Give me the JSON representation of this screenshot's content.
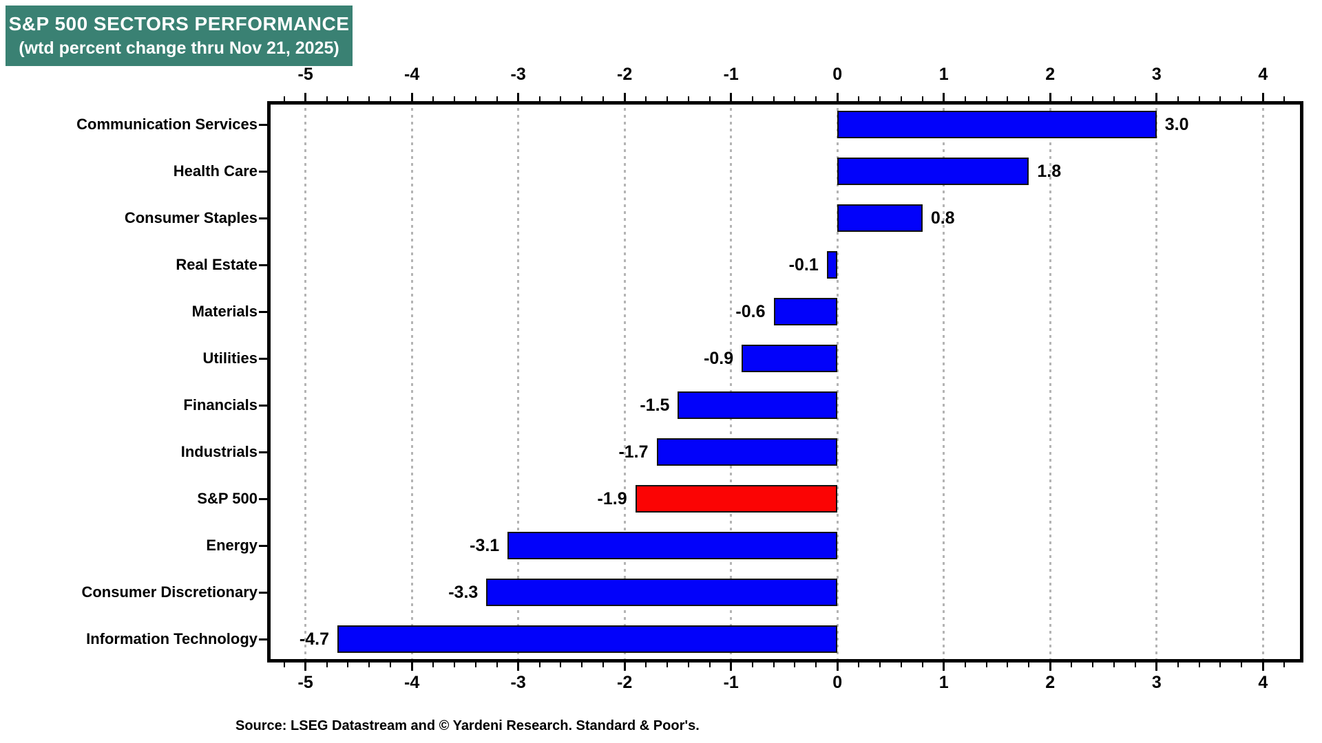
{
  "title": {
    "line1": "S&P 500 SECTORS PERFORMANCE",
    "line2": "(wtd percent change thru Nov 21, 2025)"
  },
  "source": "Source: LSEG Datastream and © Yardeni Research. Standard & Poor's.",
  "colors": {
    "title_bg": "#3a8173",
    "blue": "#0202fa",
    "red": "#fb0404",
    "grid": "#b4b4b4",
    "frame": "#000000"
  },
  "chart_data": {
    "type": "bar",
    "orientation": "horizontal",
    "title": "S&P 500 SECTORS PERFORMANCE",
    "subtitle": "(wtd percent change thru Nov 21, 2025)",
    "categories": [
      "Communication Services",
      "Health Care",
      "Consumer Staples",
      "Real Estate",
      "Materials",
      "Utilities",
      "Financials",
      "Industrials",
      "S&P 500",
      "Energy",
      "Consumer Discretionary",
      "Information Technology"
    ],
    "values": [
      3.0,
      1.8,
      0.8,
      -0.1,
      -0.6,
      -0.9,
      -1.5,
      -1.7,
      -1.9,
      -3.1,
      -3.3,
      -4.7
    ],
    "value_labels": [
      "3.0",
      "1.8",
      "0.8",
      "-0.1",
      "-0.6",
      "-0.9",
      "-1.5",
      "-1.7",
      "-1.9",
      "-3.1",
      "-3.3",
      "-4.7"
    ],
    "bar_colors": [
      "blue",
      "blue",
      "blue",
      "blue",
      "blue",
      "blue",
      "blue",
      "blue",
      "red",
      "blue",
      "blue",
      "blue"
    ],
    "xlim": [
      -5.36,
      4.38
    ],
    "x_ticks": [
      -5,
      -4,
      -3,
      -2,
      -1,
      0,
      1,
      2,
      3,
      4
    ],
    "x_tick_labels": [
      "-5",
      "-4",
      "-3",
      "-2",
      "-1",
      "0",
      "1",
      "2",
      "3",
      "4"
    ],
    "minor_tick_step": 0.2,
    "grid": true,
    "legend": "none",
    "units": "percent"
  }
}
